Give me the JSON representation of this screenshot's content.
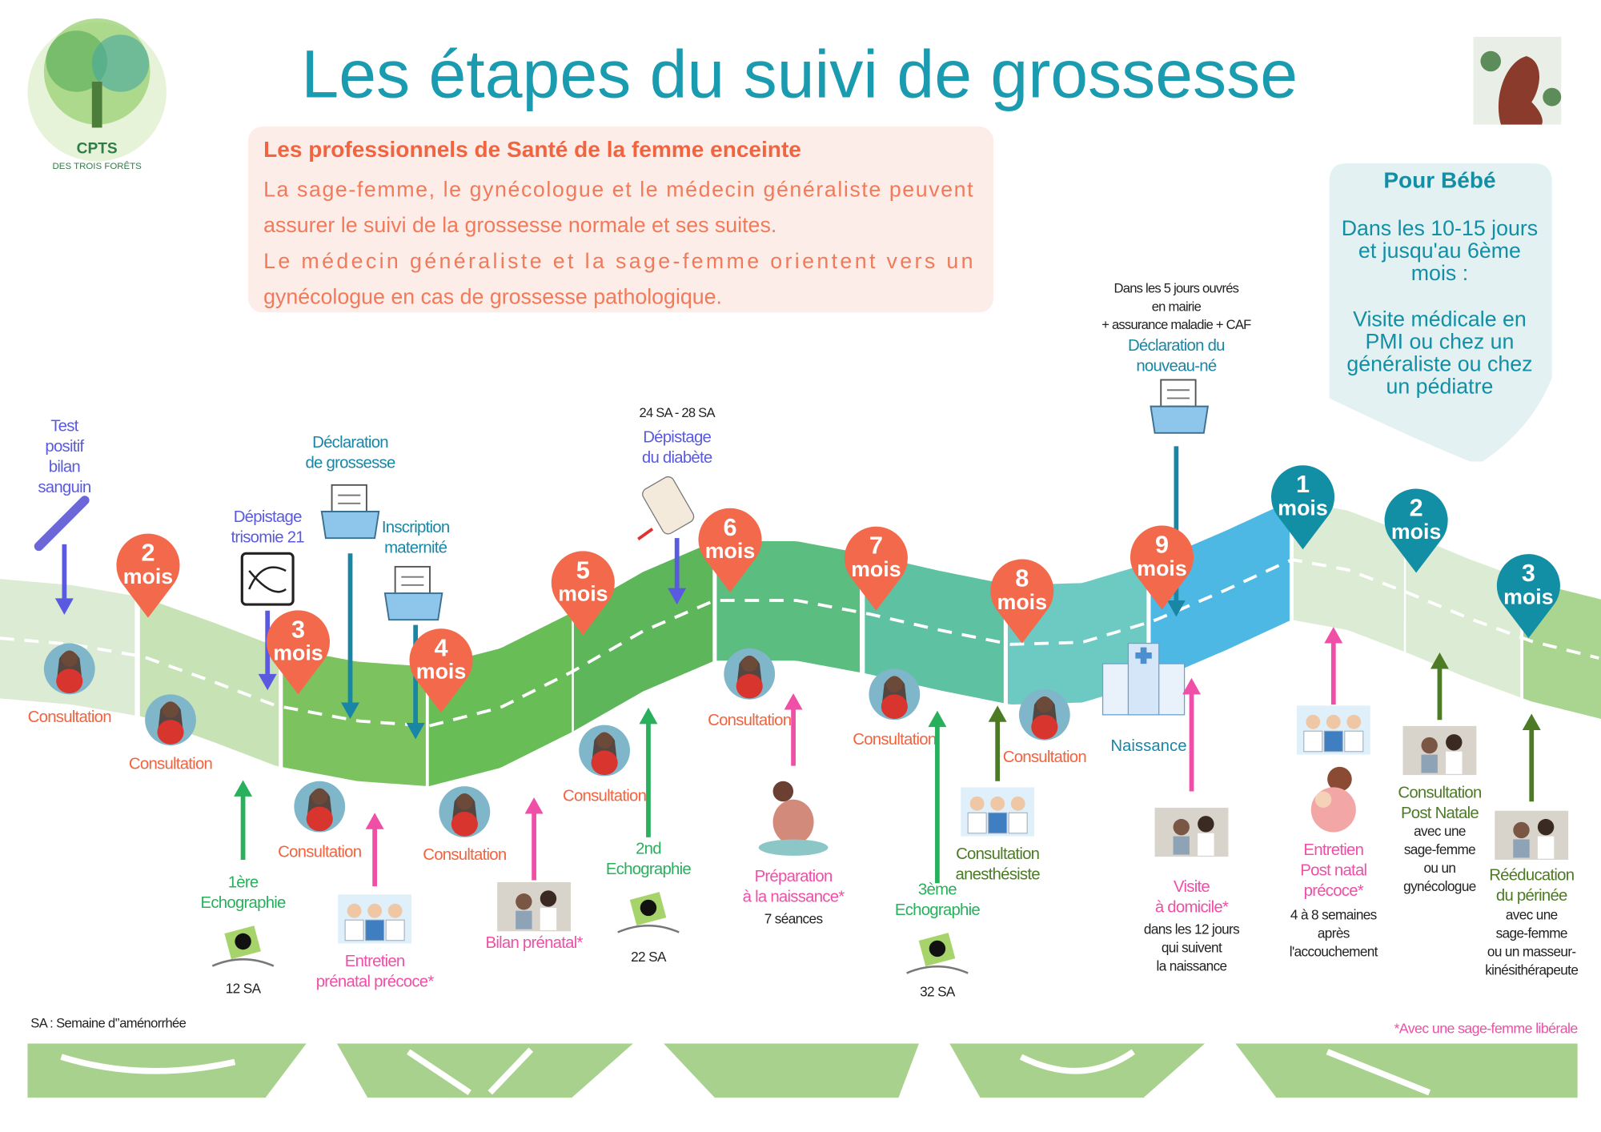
{
  "header": {
    "title": "Les étapes du suivi de grossesse",
    "logo": {
      "name": "CPTS",
      "subtitle": "DES TROIS FORÊTS"
    }
  },
  "professionals": {
    "heading": "Les professionnels de Santé de la femme enceinte",
    "lines": [
      "La sage-femme, le gynécologue et le médecin généraliste peuvent",
      "assurer le suivi de la grossesse normale et ses suites.",
      "Le médecin généraliste et la sage-femme orientent vers un",
      "gynécologue en cas de grossesse pathologique."
    ]
  },
  "baby": {
    "heading": "Pour Bébé",
    "period": [
      "Dans les 10-15 jours",
      "et jusqu'au 6ème",
      "mois :"
    ],
    "visit": [
      "Visite médicale en",
      "PMI ou chez un",
      "généraliste ou chez",
      "un pédiatre"
    ]
  },
  "timeline": {
    "months": [
      {
        "number": "2",
        "unit": "mois"
      },
      {
        "number": "3",
        "unit": "mois"
      },
      {
        "number": "4",
        "unit": "mois"
      },
      {
        "number": "5",
        "unit": "mois"
      },
      {
        "number": "6",
        "unit": "mois"
      },
      {
        "number": "7",
        "unit": "mois"
      },
      {
        "number": "8",
        "unit": "mois"
      },
      {
        "number": "9",
        "unit": "mois"
      },
      {
        "number": "1",
        "unit": "mois"
      },
      {
        "number": "2",
        "unit": "mois"
      },
      {
        "number": "3",
        "unit": "mois"
      }
    ],
    "consultations": [
      "Consultation",
      "Consultation",
      "Consultation",
      "Consultation",
      "Consultation",
      "Consultation",
      "Consultation",
      "Consultation"
    ],
    "birth": "Naissance"
  },
  "steps": [
    {
      "label": [
        "Test",
        "positif",
        "bilan",
        "sanguin"
      ]
    },
    {
      "label": [
        "Dépistage",
        "trisomie 21"
      ]
    },
    {
      "label": [
        "Déclaration",
        "de grossesse"
      ]
    },
    {
      "label": [
        "Inscription",
        "maternité"
      ]
    },
    {
      "note": [
        "24 SA - 28 SA"
      ],
      "label": [
        "Dépistage",
        "du diabète"
      ]
    },
    {
      "note": [
        "Dans les 5 jours ouvrés",
        "en mairie",
        "+ assurance maladie + CAF"
      ],
      "label": [
        "Déclaration du",
        "nouveau-né"
      ]
    },
    {
      "label": [
        "1ère",
        "Echographie"
      ],
      "detail": [
        "12 SA"
      ]
    },
    {
      "label": [
        "Entretien",
        "prénatal précoce*"
      ]
    },
    {
      "label": [
        "Bilan prénatal*"
      ]
    },
    {
      "label": [
        "2nd",
        "Echographie"
      ],
      "detail": [
        "22 SA"
      ]
    },
    {
      "label": [
        "Préparation",
        "à la naissance*"
      ],
      "detail": [
        "7 séances"
      ]
    },
    {
      "label": [
        "3ème",
        "Echographie"
      ],
      "detail": [
        "32 SA"
      ]
    },
    {
      "label": [
        "Consultation",
        "anesthésiste"
      ]
    },
    {
      "label": [
        "Visite",
        "à domicile*"
      ],
      "detail": [
        "dans les 12 jours",
        "qui suivent",
        "la naissance"
      ]
    },
    {
      "label": [
        "Entretien",
        "Post natal",
        "précoce*"
      ],
      "detail": [
        "4 à 8 semaines",
        "après",
        "l'accouchement"
      ]
    },
    {
      "label": [
        "Consultation",
        "Post Natale"
      ],
      "detail": [
        "avec une",
        "sage-femme",
        "ou un",
        "gynécologue"
      ]
    },
    {
      "label": [
        "Rééducation",
        "du périnée"
      ],
      "detail": [
        "avec une",
        "sage-femme",
        "ou un masseur-",
        "kinésithérapeute"
      ]
    }
  ],
  "footnotes": {
    "left": "SA : Semaine d'’aménorrhée",
    "right": "*Avec une sage-femme  libérale"
  }
}
